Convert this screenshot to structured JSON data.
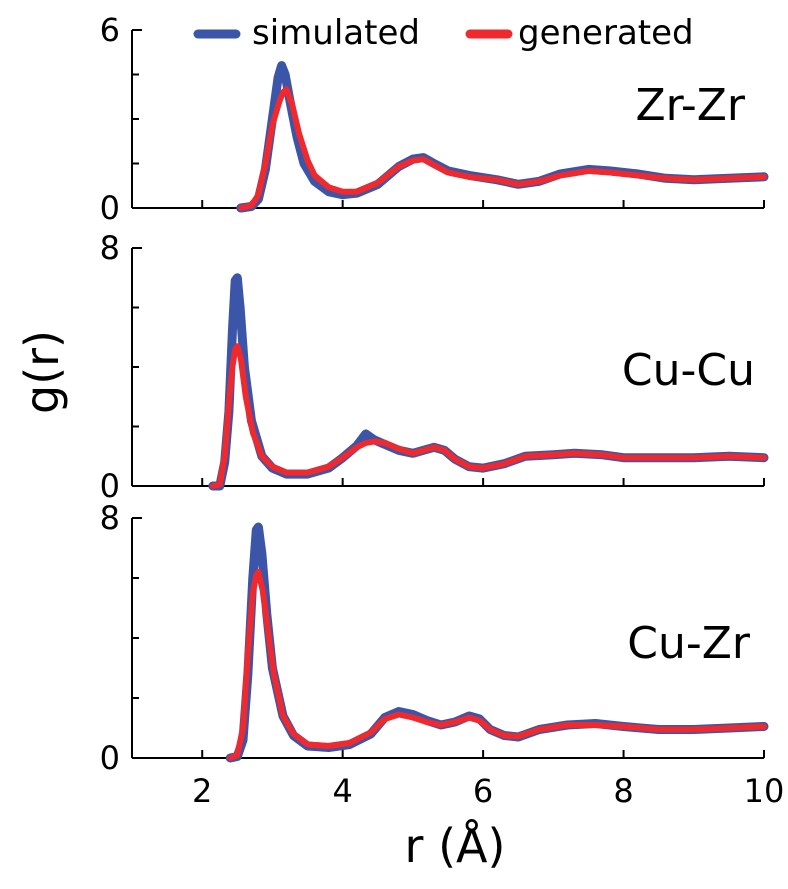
{
  "legend": {
    "items": [
      {
        "label": "simulated",
        "color": "#3b55a8"
      },
      {
        "label": "generated",
        "color": "#ee2a2e"
      }
    ]
  },
  "axes": {
    "xlabel": "r (Å)",
    "ylabel": "g(r)",
    "xlim": [
      1,
      10
    ],
    "xticks": [
      "2",
      "4",
      "6",
      "8",
      "10"
    ]
  },
  "chart_data": [
    {
      "type": "line",
      "title": "",
      "panel_label": "Zr-Zr",
      "xlabel": "r (Å)",
      "ylabel": "g(r)",
      "xlim": [
        1,
        10
      ],
      "ylim": [
        0,
        6
      ],
      "ytick_labels": [
        "0",
        "6"
      ],
      "series": [
        {
          "name": "simulated",
          "color": "#3b55a8",
          "x": [
            2.55,
            2.7,
            2.8,
            2.9,
            3.0,
            3.08,
            3.13,
            3.18,
            3.25,
            3.35,
            3.45,
            3.6,
            3.8,
            4.0,
            4.2,
            4.5,
            4.8,
            5.0,
            5.15,
            5.3,
            5.5,
            5.8,
            6.2,
            6.5,
            6.8,
            7.1,
            7.5,
            7.8,
            8.2,
            8.6,
            9.0,
            9.5,
            10.0
          ],
          "y": [
            0.0,
            0.05,
            0.3,
            1.3,
            3.0,
            4.4,
            4.8,
            4.5,
            3.6,
            2.4,
            1.5,
            0.9,
            0.55,
            0.45,
            0.5,
            0.8,
            1.4,
            1.65,
            1.7,
            1.5,
            1.25,
            1.1,
            0.95,
            0.8,
            0.9,
            1.15,
            1.3,
            1.25,
            1.15,
            1.0,
            0.95,
            1.0,
            1.05
          ]
        },
        {
          "name": "generated",
          "color": "#ee2a2e",
          "x": [
            2.55,
            2.7,
            2.8,
            2.9,
            3.0,
            3.1,
            3.15,
            3.2,
            3.28,
            3.38,
            3.5,
            3.6,
            3.8,
            4.0,
            4.2,
            4.5,
            4.8,
            5.0,
            5.15,
            5.3,
            5.5,
            5.8,
            6.2,
            6.5,
            6.8,
            7.1,
            7.5,
            7.8,
            8.2,
            8.6,
            9.0,
            9.5,
            10.0
          ],
          "y": [
            0.0,
            0.08,
            0.45,
            1.5,
            2.8,
            3.6,
            3.9,
            4.0,
            3.5,
            2.5,
            1.6,
            1.1,
            0.7,
            0.55,
            0.55,
            0.85,
            1.4,
            1.6,
            1.65,
            1.45,
            1.2,
            1.05,
            0.95,
            0.8,
            0.9,
            1.1,
            1.25,
            1.2,
            1.1,
            1.0,
            0.95,
            1.0,
            1.05
          ]
        }
      ]
    },
    {
      "type": "line",
      "title": "",
      "panel_label": "Cu-Cu",
      "xlabel": "r (Å)",
      "ylabel": "g(r)",
      "xlim": [
        1,
        10
      ],
      "ylim": [
        0,
        8
      ],
      "ytick_labels": [
        "0",
        "8"
      ],
      "series": [
        {
          "name": "simulated",
          "color": "#3b55a8",
          "x": [
            2.15,
            2.25,
            2.32,
            2.38,
            2.43,
            2.47,
            2.5,
            2.54,
            2.6,
            2.7,
            2.85,
            3.0,
            3.2,
            3.5,
            3.8,
            4.0,
            4.2,
            4.33,
            4.45,
            4.6,
            4.8,
            5.0,
            5.15,
            5.3,
            5.45,
            5.6,
            5.8,
            6.0,
            6.3,
            6.6,
            7.0,
            7.3,
            7.7,
            8.0,
            8.5,
            9.0,
            9.5,
            10.0
          ],
          "y": [
            0.0,
            0.0,
            0.8,
            2.5,
            5.2,
            6.9,
            7.0,
            6.0,
            4.0,
            2.2,
            1.0,
            0.6,
            0.4,
            0.4,
            0.6,
            0.95,
            1.35,
            1.75,
            1.55,
            1.4,
            1.2,
            1.1,
            1.2,
            1.3,
            1.2,
            0.9,
            0.65,
            0.6,
            0.75,
            1.0,
            1.05,
            1.1,
            1.05,
            0.95,
            0.95,
            0.95,
            1.0,
            0.95
          ]
        },
        {
          "name": "generated",
          "color": "#ee2a2e",
          "x": [
            2.15,
            2.25,
            2.32,
            2.38,
            2.43,
            2.47,
            2.5,
            2.55,
            2.62,
            2.72,
            2.85,
            3.0,
            3.2,
            3.5,
            3.8,
            4.0,
            4.2,
            4.33,
            4.45,
            4.6,
            4.8,
            5.0,
            5.15,
            5.3,
            5.45,
            5.6,
            5.8,
            6.0,
            6.3,
            6.6,
            7.0,
            7.3,
            7.7,
            8.0,
            8.5,
            9.0,
            9.5,
            10.0
          ],
          "y": [
            0.0,
            0.05,
            1.0,
            2.8,
            4.0,
            4.6,
            4.7,
            4.3,
            3.0,
            1.8,
            1.0,
            0.65,
            0.45,
            0.45,
            0.65,
            0.95,
            1.3,
            1.45,
            1.5,
            1.45,
            1.25,
            1.1,
            1.2,
            1.3,
            1.2,
            0.9,
            0.65,
            0.6,
            0.75,
            1.0,
            1.05,
            1.1,
            1.05,
            0.95,
            0.95,
            0.95,
            1.0,
            0.95
          ]
        }
      ]
    },
    {
      "type": "line",
      "title": "",
      "panel_label": "Cu-Zr",
      "xlabel": "r (Å)",
      "ylabel": "g(r)",
      "xlim": [
        1,
        10
      ],
      "ylim": [
        0,
        8
      ],
      "ytick_labels": [
        "0",
        "8"
      ],
      "series": [
        {
          "name": "simulated",
          "color": "#3b55a8",
          "x": [
            2.4,
            2.5,
            2.58,
            2.65,
            2.72,
            2.77,
            2.8,
            2.85,
            2.92,
            3.0,
            3.15,
            3.3,
            3.5,
            3.8,
            4.1,
            4.4,
            4.6,
            4.8,
            5.0,
            5.2,
            5.4,
            5.6,
            5.8,
            5.95,
            6.1,
            6.3,
            6.5,
            6.8,
            7.2,
            7.6,
            8.0,
            8.5,
            9.0,
            9.5,
            10.0
          ],
          "y": [
            0.0,
            0.05,
            0.6,
            2.8,
            6.0,
            7.6,
            7.7,
            6.8,
            4.8,
            3.0,
            1.4,
            0.75,
            0.4,
            0.35,
            0.45,
            0.8,
            1.35,
            1.55,
            1.45,
            1.25,
            1.1,
            1.2,
            1.4,
            1.3,
            0.95,
            0.75,
            0.7,
            0.95,
            1.1,
            1.15,
            1.05,
            0.95,
            0.95,
            1.0,
            1.05
          ]
        },
        {
          "name": "generated",
          "color": "#ee2a2e",
          "x": [
            2.4,
            2.5,
            2.58,
            2.65,
            2.72,
            2.77,
            2.8,
            2.86,
            2.94,
            3.02,
            3.15,
            3.3,
            3.5,
            3.8,
            4.1,
            4.4,
            4.6,
            4.8,
            5.0,
            5.2,
            5.4,
            5.6,
            5.8,
            5.95,
            6.1,
            6.3,
            6.5,
            6.8,
            7.2,
            7.6,
            8.0,
            8.5,
            9.0,
            9.5,
            10.0
          ],
          "y": [
            0.0,
            0.1,
            1.0,
            3.5,
            5.5,
            6.1,
            6.2,
            5.6,
            4.2,
            2.8,
            1.4,
            0.8,
            0.45,
            0.4,
            0.5,
            0.85,
            1.3,
            1.45,
            1.35,
            1.2,
            1.1,
            1.2,
            1.35,
            1.25,
            0.95,
            0.75,
            0.72,
            0.95,
            1.1,
            1.1,
            1.05,
            0.95,
            0.95,
            1.0,
            1.05
          ]
        }
      ]
    }
  ]
}
